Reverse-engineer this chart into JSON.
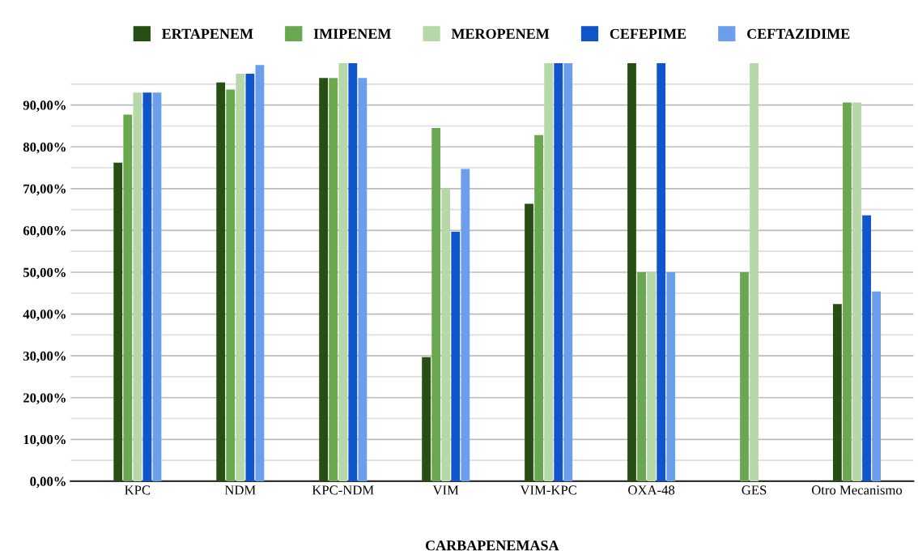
{
  "chart_data": {
    "type": "bar",
    "xlabel": "CARBAPENEMASA",
    "categories": [
      "KPC",
      "NDM",
      "KPC-NDM",
      "VIM",
      "VIM-KPC",
      "OXA-48",
      "GES",
      "Otro Mecanismo"
    ],
    "series": [
      {
        "name": "ERTAPENEM",
        "color": "#274e13",
        "values": [
          76.2,
          95.4,
          96.5,
          29.7,
          66.4,
          100,
          null,
          42.4
        ]
      },
      {
        "name": "IMIPENEM",
        "color": "#6aa84f",
        "values": [
          87.7,
          93.7,
          96.5,
          84.5,
          82.8,
          50,
          50,
          90.6
        ]
      },
      {
        "name": "MEROPENEM",
        "color": "#b6d7a8",
        "values": [
          93.0,
          97.5,
          100,
          70,
          100,
          50,
          100,
          90.6
        ]
      },
      {
        "name": "CEFEPIME",
        "color": "#1155cc",
        "values": [
          93.0,
          97.5,
          100,
          59.7,
          100,
          100,
          null,
          63.6
        ]
      },
      {
        "name": "CEFTAZIDIME",
        "color": "#6d9eeb",
        "values": [
          93.0,
          99.6,
          96.5,
          74.7,
          100,
          50,
          null,
          45.4
        ]
      }
    ],
    "ylim": [
      0,
      100
    ],
    "yticks": [
      {
        "value": 0,
        "label": "0,00%"
      },
      {
        "value": 5,
        "label": null
      },
      {
        "value": 10,
        "label": "10,00%"
      },
      {
        "value": 15,
        "label": null
      },
      {
        "value": 20,
        "label": "20,00%"
      },
      {
        "value": 25,
        "label": null
      },
      {
        "value": 30,
        "label": "30,00%"
      },
      {
        "value": 35,
        "label": null
      },
      {
        "value": 40,
        "label": "40,00%"
      },
      {
        "value": 45,
        "label": null
      },
      {
        "value": 50,
        "label": "50,00%"
      },
      {
        "value": 55,
        "label": null
      },
      {
        "value": 60,
        "label": "60,00%"
      },
      {
        "value": 65,
        "label": null
      },
      {
        "value": 70,
        "label": "70,00%"
      },
      {
        "value": 75,
        "label": null
      },
      {
        "value": 80,
        "label": "80,00%"
      },
      {
        "value": 85,
        "label": null
      },
      {
        "value": 90,
        "label": "90,00%"
      },
      {
        "value": 95,
        "label": null
      }
    ],
    "grid": "y",
    "legend": "top"
  }
}
